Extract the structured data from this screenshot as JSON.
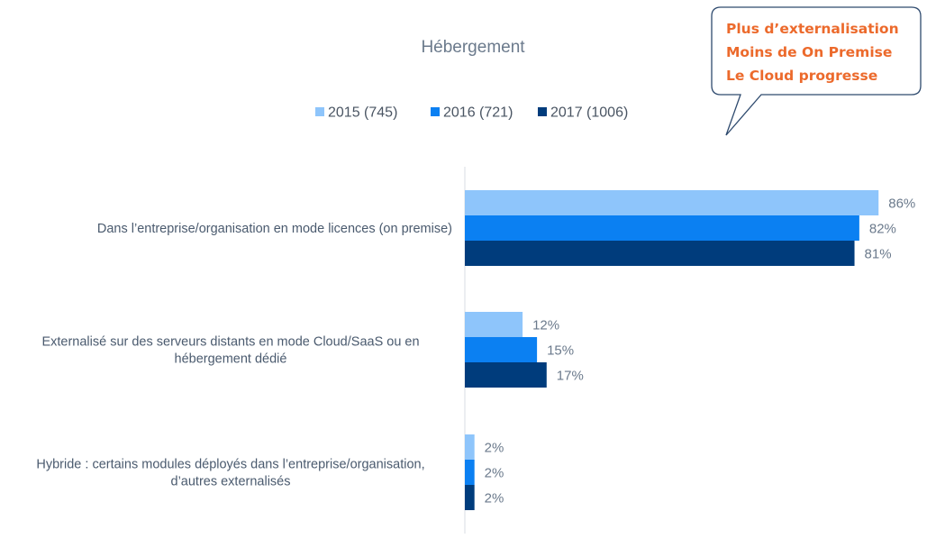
{
  "chart_data": {
    "type": "bar",
    "orientation": "horizontal",
    "title": "Hébergement",
    "categories": [
      [
        "Dans l’entreprise/organisation en mode licences (on premise)"
      ],
      [
        "Externalisé sur des serveurs distants en mode Cloud/SaaS ou en",
        "hébergement dédié"
      ],
      [
        "Hybride : certains modules déployés dans l’entreprise/organisation,",
        "d’autres externalisés"
      ]
    ],
    "series": [
      {
        "name": "2015 (745)",
        "color": "#8ec5fb",
        "values": [
          86,
          12,
          2
        ],
        "labels": [
          "86%",
          "12%",
          "2%"
        ]
      },
      {
        "name": "2016 (721)",
        "color": "#0b80f2",
        "values": [
          82,
          15,
          2
        ],
        "labels": [
          "82%",
          "15%",
          "2%"
        ]
      },
      {
        "name": "2017 (1006)",
        "color": "#003c7c",
        "values": [
          81,
          17,
          2
        ],
        "labels": [
          "81%",
          "17%",
          "2%"
        ]
      }
    ],
    "xlim": [
      0,
      100
    ],
    "unit": "%",
    "grid": false,
    "legend": "top-center"
  },
  "callout": {
    "lines": [
      "Plus d’externalisation",
      "Moins de On Premise",
      "Le Cloud progresse"
    ],
    "text_color": "#ec6a2c",
    "border_color": "#2e4a6e"
  }
}
